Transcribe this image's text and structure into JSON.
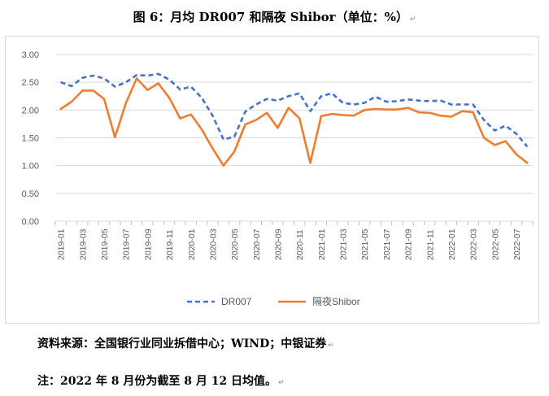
{
  "title": "图 6：月均 DR007 和隔夜 Shibor（单位：%）",
  "paragraph_mark": "↵",
  "source_note": "资料来源：全国银行业同业拆借中心；WIND；中银证券",
  "remark_note": "注：2022 年 8 月份为截至 8 月 12 日均值。",
  "chart_data": {
    "type": "line",
    "ylim": [
      0,
      3
    ],
    "yticks": [
      "0.00",
      "0.50",
      "1.00",
      "1.50",
      "2.00",
      "2.50",
      "3.00"
    ],
    "x": [
      "2019-01",
      "2019-02",
      "2019-03",
      "2019-04",
      "2019-05",
      "2019-06",
      "2019-07",
      "2019-08",
      "2019-09",
      "2019-10",
      "2019-11",
      "2019-12",
      "2020-01",
      "2020-02",
      "2020-03",
      "2020-04",
      "2020-05",
      "2020-06",
      "2020-07",
      "2020-08",
      "2020-09",
      "2020-10",
      "2020-11",
      "2020-12",
      "2021-01",
      "2021-02",
      "2021-03",
      "2021-04",
      "2021-05",
      "2021-06",
      "2021-07",
      "2021-08",
      "2021-09",
      "2021-10",
      "2021-11",
      "2021-12",
      "2022-01",
      "2022-02",
      "2022-03",
      "2022-04",
      "2022-05",
      "2022-06",
      "2022-07",
      "2022-08"
    ],
    "xtick_labels": [
      "2019-01",
      "2019-03",
      "2019-05",
      "2019-07",
      "2019-09",
      "2019-11",
      "2020-01",
      "2020-03",
      "2020-05",
      "2020-07",
      "2020-09",
      "2020-11",
      "2021-01",
      "2021-03",
      "2021-05",
      "2021-07",
      "2021-09",
      "2021-11",
      "2022-01",
      "2022-03",
      "2022-05",
      "2022-07"
    ],
    "series": [
      {
        "name": "DR007",
        "color": "#4472C4",
        "dash": "dashed",
        "values": [
          2.5,
          2.43,
          2.58,
          2.62,
          2.57,
          2.42,
          2.5,
          2.63,
          2.62,
          2.65,
          2.55,
          2.37,
          2.42,
          2.22,
          1.9,
          1.47,
          1.52,
          1.97,
          2.1,
          2.2,
          2.17,
          2.25,
          2.3,
          1.98,
          2.25,
          2.3,
          2.13,
          2.1,
          2.13,
          2.24,
          2.15,
          2.16,
          2.19,
          2.17,
          2.16,
          2.17,
          2.1,
          2.1,
          2.1,
          1.82,
          1.63,
          1.72,
          1.57,
          1.34
        ]
      },
      {
        "name": "隔夜Shibor",
        "color": "#ED7D31",
        "dash": "solid",
        "values": [
          2.02,
          2.15,
          2.35,
          2.35,
          2.2,
          1.51,
          2.12,
          2.57,
          2.36,
          2.48,
          2.22,
          1.85,
          1.92,
          1.65,
          1.31,
          1.0,
          1.25,
          1.74,
          1.82,
          1.95,
          1.68,
          2.04,
          1.85,
          1.05,
          1.89,
          1.93,
          1.91,
          1.9,
          2.0,
          2.02,
          2.01,
          2.01,
          2.04,
          1.96,
          1.95,
          1.9,
          1.88,
          1.98,
          1.96,
          1.5,
          1.37,
          1.44,
          1.2,
          1.05
        ]
      }
    ],
    "legend_position": "bottom",
    "grid": true
  }
}
